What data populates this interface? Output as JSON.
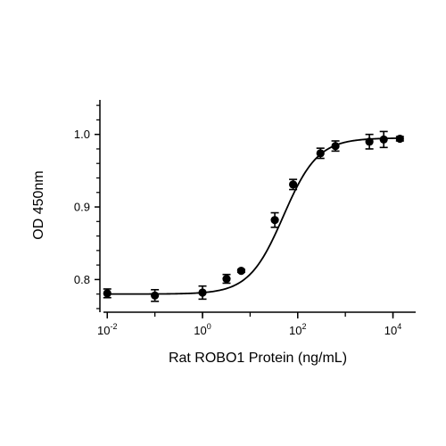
{
  "chart_data": {
    "type": "scatter",
    "xlabel": "Rat ROBO1 Protein (ng/mL)",
    "ylabel": "OD 450nm",
    "x_scale": "log10",
    "xlim": [
      0.007,
      30000
    ],
    "ylim": [
      0.755,
      1.05
    ],
    "x_ticks": [
      {
        "value": 0.01,
        "base": "10",
        "exp": "-2"
      },
      {
        "value": 1,
        "base": "10",
        "exp": "0"
      },
      {
        "value": 100,
        "base": "10",
        "exp": "2"
      },
      {
        "value": 10000,
        "base": "10",
        "exp": "4"
      }
    ],
    "y_ticks": [
      {
        "value": 0.8,
        "label": "0.8"
      },
      {
        "value": 0.9,
        "label": "0.9"
      },
      {
        "value": 1.0,
        "label": "1.0"
      }
    ],
    "grid": false,
    "legend": "none",
    "series": [
      {
        "points": [
          {
            "x": 0.01,
            "y": 0.781,
            "err": 0.006
          },
          {
            "x": 0.1,
            "y": 0.778,
            "err": 0.008
          },
          {
            "x": 1,
            "y": 0.782,
            "err": 0.009
          },
          {
            "x": 3.2,
            "y": 0.801,
            "err": 0.006
          },
          {
            "x": 6.5,
            "y": 0.812,
            "err": 0.002
          },
          {
            "x": 33,
            "y": 0.882,
            "err": 0.01
          },
          {
            "x": 80,
            "y": 0.931,
            "err": 0.007
          },
          {
            "x": 300,
            "y": 0.974,
            "err": 0.007
          },
          {
            "x": 620,
            "y": 0.984,
            "err": 0.007
          },
          {
            "x": 3200,
            "y": 0.99,
            "err": 0.01
          },
          {
            "x": 6400,
            "y": 0.993,
            "err": 0.011
          },
          {
            "x": 14000,
            "y": 0.994,
            "err": 0.003
          }
        ],
        "fit": {
          "model": "4PL",
          "bottom": 0.78,
          "top": 0.995,
          "ec50": 50,
          "hill": 1.2
        },
        "color": "#000000"
      }
    ]
  }
}
